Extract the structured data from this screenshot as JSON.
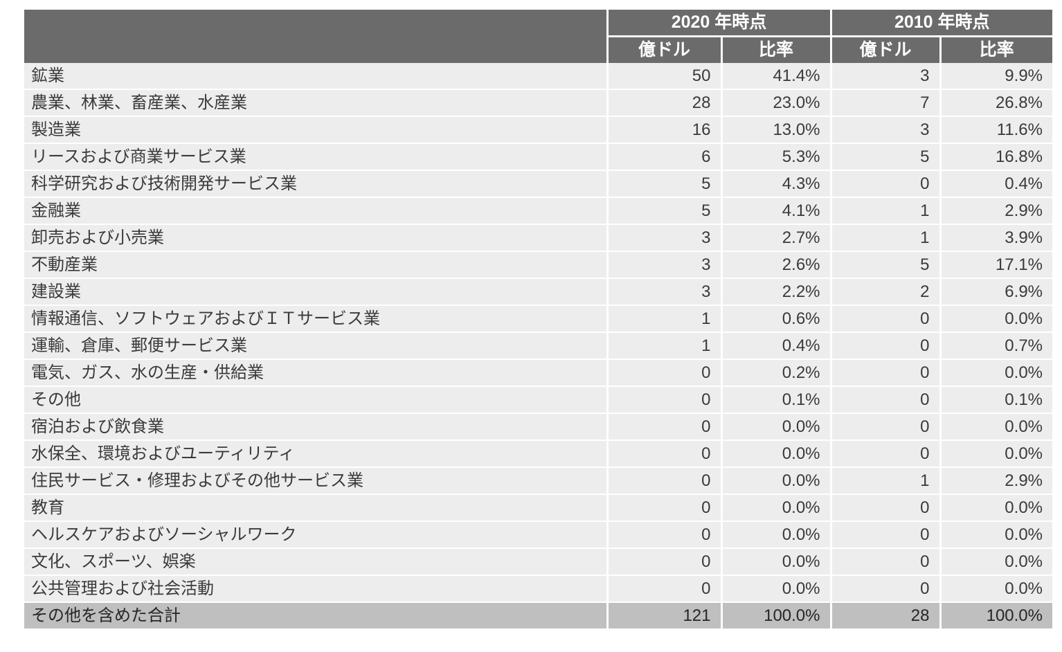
{
  "colors": {
    "header_bg": "#6b6b6b",
    "header_text": "#ffffff",
    "body_row_bg": "#ededed",
    "total_row_bg": "#bfbfbf",
    "grid": "#ffffff",
    "body_text": "#3a3a3a"
  },
  "chart_data": {
    "type": "table",
    "column_groups": [
      "2020 年時点",
      "2010 年時点"
    ],
    "sub_headers": [
      "億ドル",
      "比率",
      "億ドル",
      "比率"
    ],
    "rows": [
      {
        "label": "鉱業",
        "values": [
          "50",
          "41.4%",
          "3",
          "9.9%"
        ]
      },
      {
        "label": "農業、林業、畜産業、水産業",
        "values": [
          "28",
          "23.0%",
          "7",
          "26.8%"
        ]
      },
      {
        "label": "製造業",
        "values": [
          "16",
          "13.0%",
          "3",
          "11.6%"
        ]
      },
      {
        "label": "リースおよび商業サービス業",
        "values": [
          "6",
          "5.3%",
          "5",
          "16.8%"
        ]
      },
      {
        "label": "科学研究および技術開発サービス業",
        "values": [
          "5",
          "4.3%",
          "0",
          "0.4%"
        ]
      },
      {
        "label": "金融業",
        "values": [
          "5",
          "4.1%",
          "1",
          "2.9%"
        ]
      },
      {
        "label": "卸売および小売業",
        "values": [
          "3",
          "2.7%",
          "1",
          "3.9%"
        ]
      },
      {
        "label": "不動産業",
        "values": [
          "3",
          "2.6%",
          "5",
          "17.1%"
        ]
      },
      {
        "label": "建設業",
        "values": [
          "3",
          "2.2%",
          "2",
          "6.9%"
        ]
      },
      {
        "label": "情報通信、ソフトウェアおよびＩＴサービス業",
        "values": [
          "1",
          "0.6%",
          "0",
          "0.0%"
        ]
      },
      {
        "label": "運輸、倉庫、郵便サービス業",
        "values": [
          "1",
          "0.4%",
          "0",
          "0.7%"
        ]
      },
      {
        "label": "電気、ガス、水の生産・供給業",
        "values": [
          "0",
          "0.2%",
          "0",
          "0.0%"
        ]
      },
      {
        "label": "その他",
        "values": [
          "0",
          "0.1%",
          "0",
          "0.1%"
        ]
      },
      {
        "label": "宿泊および飲食業",
        "values": [
          "0",
          "0.0%",
          "0",
          "0.0%"
        ]
      },
      {
        "label": "水保全、環境およびユーティリティ",
        "values": [
          "0",
          "0.0%",
          "0",
          "0.0%"
        ]
      },
      {
        "label": "住民サービス・修理およびその他サービス業",
        "values": [
          "0",
          "0.0%",
          "1",
          "2.9%"
        ]
      },
      {
        "label": "教育",
        "values": [
          "0",
          "0.0%",
          "0",
          "0.0%"
        ]
      },
      {
        "label": "ヘルスケアおよびソーシャルワーク",
        "values": [
          "0",
          "0.0%",
          "0",
          "0.0%"
        ]
      },
      {
        "label": "文化、スポーツ、娯楽",
        "values": [
          "0",
          "0.0%",
          "0",
          "0.0%"
        ]
      },
      {
        "label": "公共管理および社会活動",
        "values": [
          "0",
          "0.0%",
          "0",
          "0.0%"
        ]
      }
    ],
    "total": {
      "label": "その他を含めた合計",
      "values": [
        "121",
        "100.0%",
        "28",
        "100.0%"
      ]
    }
  }
}
